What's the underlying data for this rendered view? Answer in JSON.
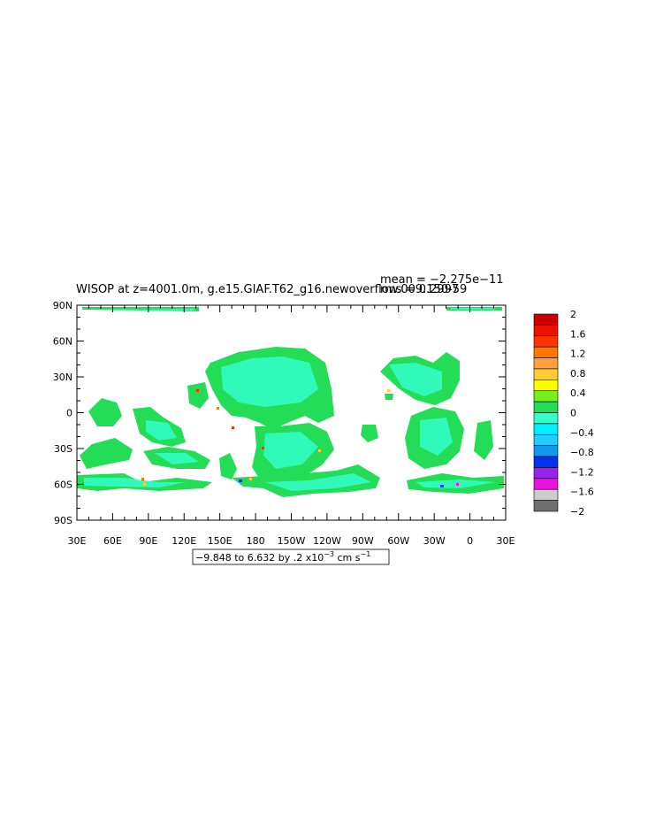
{
  "title": {
    "main": "WISOP at z=4001.0m, g.e15.GIAF.T62_g16.newoverflow.009.150-59",
    "mean": "mean = −2.275e−11",
    "rms": "rms = 0.2997"
  },
  "axes": {
    "y_ticks": [
      "90N",
      "60N",
      "30N",
      "0",
      "30S",
      "60S",
      "90S"
    ],
    "x_ticks": [
      "30E",
      "60E",
      "90E",
      "120E",
      "150E",
      "180",
      "150W",
      "120W",
      "90W",
      "60W",
      "30W",
      "0",
      "30E"
    ]
  },
  "range_label": {
    "prefix": "−9.848 to 6.632 by .2 x10",
    "exp": "−3",
    "unit": " cm s",
    "unit_exp": "−1"
  },
  "colorbar": {
    "colors": [
      "#cc0000",
      "#ee1100",
      "#ff3300",
      "#ff7700",
      "#ffa040",
      "#ffcc33",
      "#ffff00",
      "#77ee22",
      "#22dd55",
      "#33ffcc",
      "#00eeff",
      "#22ccff",
      "#1199ee",
      "#0033ee",
      "#9922ee",
      "#ee11dd",
      "#cccccc",
      "#707070"
    ],
    "labels": [
      "2",
      "1.6",
      "1.2",
      "0.8",
      "0.4",
      "0",
      "−0.4",
      "−0.8",
      "−1.2",
      "−1.6",
      "−2"
    ]
  },
  "chart_data": {
    "type": "heatmap",
    "variable": "WISOP",
    "depth_m": 4001.0,
    "x_range": [
      30,
      390
    ],
    "y_range": [
      -90,
      90
    ],
    "levels": [
      2,
      1.8,
      1.6,
      1.4,
      1.2,
      1.0,
      0.8,
      0.6,
      0.4,
      0.2,
      0,
      -0.2,
      -0.4,
      -0.6,
      -0.8,
      -1.0,
      -1.2,
      -1.4,
      -1.6,
      -1.8,
      -2
    ]
  }
}
